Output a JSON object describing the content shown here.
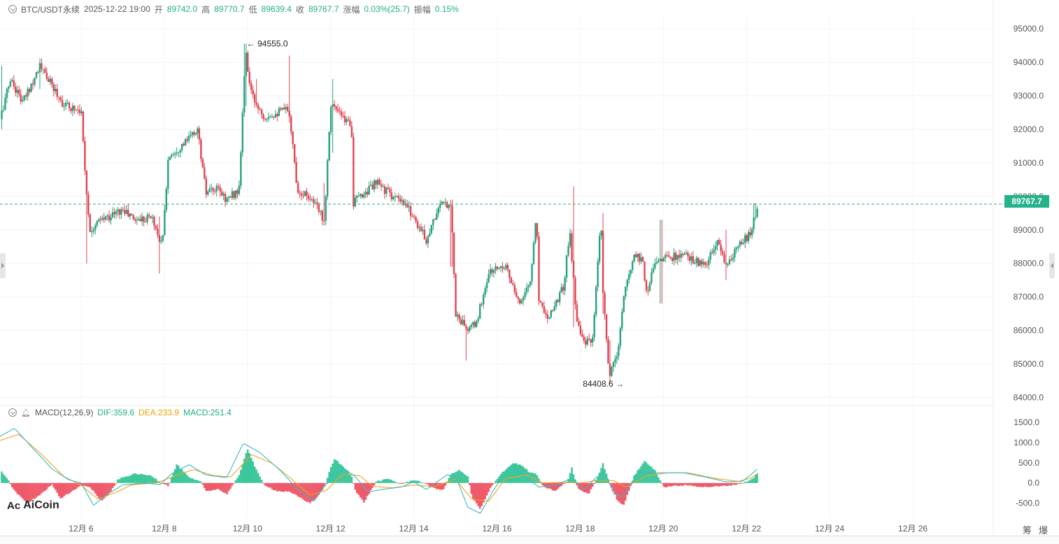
{
  "header": {
    "symbol": "BTC/USDT永续",
    "datetime": "2025-12-22 19:00",
    "open_label": "开",
    "open": "89742.0",
    "high_label": "高",
    "high": "89770.7",
    "low_label": "低",
    "low": "89639.4",
    "close_label": "收",
    "close": "89767.7",
    "change_label": "涨幅",
    "change": "0.03%(25.7)",
    "amplitude_label": "振幅",
    "amplitude": "0.15%"
  },
  "macd_header": {
    "name": "MACD(12,26,9)",
    "dif": "DIF:359.6",
    "dea": "DEA:233.9",
    "macd": "MACD:251.4"
  },
  "current_price": "89767.7",
  "logo": "AiCoin",
  "toolbar": {
    "items": [
      "筹",
      "爆"
    ]
  },
  "icons": [
    "collapse-chevron-icon",
    "bell-icon",
    "aicoin-logo-icon"
  ],
  "colors": {
    "up": "#26a17b",
    "down": "#e04352",
    "dif": "#3cb8c8",
    "dea": "#f0a519",
    "price_line": "#2aa889"
  },
  "chart_data": [
    {
      "type": "candlestick",
      "title": "BTC/USDT永续",
      "interval_note": "hourly candles",
      "x_tick_labels": [
        "12月 6",
        "12月 8",
        "12月 10",
        "12月 12",
        "12月 14",
        "12月 16",
        "12月 18",
        "12月 20",
        "12月 22",
        "12月 24",
        "12月 26"
      ],
      "x_ticks_day": [
        6,
        8,
        10,
        12,
        14,
        16,
        18,
        20,
        22,
        24,
        26
      ],
      "xlim_day": [
        4.05,
        27.9
      ],
      "ylim": [
        83800,
        95400
      ],
      "y_tick_labels": [
        "95000.0",
        "94000.0",
        "93000.0",
        "92000.0",
        "91000.0",
        "90000.0",
        "89000.0",
        "88000.0",
        "87000.0",
        "86000.0",
        "85000.0",
        "84000.0"
      ],
      "y_ticks": [
        95000,
        94000,
        93000,
        92000,
        91000,
        90000,
        89000,
        88000,
        87000,
        86000,
        85000,
        84000
      ],
      "last_price_line": 89767.7,
      "annotations": [
        {
          "text": "94555.0",
          "day": 9.95,
          "price": 94555.0,
          "side": "right"
        },
        {
          "text": "84408.6",
          "day": 19.12,
          "price": 84408.6,
          "side": "left"
        }
      ],
      "close_path": [
        [
          4.05,
          92300
        ],
        [
          4.3,
          93500
        ],
        [
          4.6,
          92800
        ],
        [
          5.0,
          93900
        ],
        [
          5.3,
          93300
        ],
        [
          5.6,
          92700
        ],
        [
          6.0,
          92600
        ],
        [
          6.1,
          90700
        ],
        [
          6.2,
          89000
        ],
        [
          6.5,
          89300
        ],
        [
          7.0,
          89600
        ],
        [
          7.3,
          89300
        ],
        [
          7.7,
          89400
        ],
        [
          7.95,
          88500
        ],
        [
          8.1,
          91200
        ],
        [
          8.5,
          91600
        ],
        [
          8.8,
          92000
        ],
        [
          9.0,
          90100
        ],
        [
          9.3,
          90200
        ],
        [
          9.5,
          89900
        ],
        [
          9.8,
          90200
        ],
        [
          9.95,
          94300
        ],
        [
          10.1,
          93000
        ],
        [
          10.4,
          92400
        ],
        [
          10.7,
          92500
        ],
        [
          11.0,
          92600
        ],
        [
          11.2,
          90200
        ],
        [
          11.5,
          90000
        ],
        [
          11.85,
          89300
        ],
        [
          12.0,
          92800
        ],
        [
          12.3,
          92300
        ],
        [
          12.5,
          92200
        ],
        [
          12.55,
          89800
        ],
        [
          12.8,
          90100
        ],
        [
          13.1,
          90400
        ],
        [
          13.5,
          90000
        ],
        [
          13.9,
          89600
        ],
        [
          14.3,
          88700
        ],
        [
          14.6,
          89700
        ],
        [
          14.9,
          89800
        ],
        [
          15.0,
          86500
        ],
        [
          15.3,
          86000
        ],
        [
          15.5,
          86200
        ],
        [
          15.8,
          87700
        ],
        [
          16.2,
          88000
        ],
        [
          16.5,
          86800
        ],
        [
          16.8,
          87400
        ],
        [
          16.95,
          89600
        ],
        [
          17.0,
          87000
        ],
        [
          17.2,
          86400
        ],
        [
          17.4,
          86800
        ],
        [
          17.6,
          87300
        ],
        [
          17.75,
          89000
        ],
        [
          17.9,
          86500
        ],
        [
          18.1,
          85600
        ],
        [
          18.3,
          85700
        ],
        [
          18.5,
          89300
        ],
        [
          18.55,
          87100
        ],
        [
          18.7,
          84600
        ],
        [
          18.9,
          85300
        ],
        [
          19.05,
          87000
        ],
        [
          19.3,
          88300
        ],
        [
          19.5,
          88100
        ],
        [
          19.6,
          87100
        ],
        [
          19.8,
          88100
        ],
        [
          20.2,
          88200
        ],
        [
          20.6,
          88200
        ],
        [
          21.0,
          87900
        ],
        [
          21.3,
          88600
        ],
        [
          21.55,
          87900
        ],
        [
          21.8,
          88500
        ],
        [
          22.1,
          88900
        ],
        [
          22.28,
          89767.7
        ]
      ],
      "wick_spikes": [
        [
          4.1,
          92000,
          93900
        ],
        [
          5.0,
          93200,
          94000
        ],
        [
          6.15,
          88000,
          90400
        ],
        [
          7.9,
          87700,
          89400
        ],
        [
          9.95,
          92700,
          94555.0
        ],
        [
          10.2,
          92700,
          93500
        ],
        [
          11.0,
          92200,
          94200
        ],
        [
          11.85,
          89200,
          90400
        ],
        [
          12.05,
          91300,
          93500
        ],
        [
          14.9,
          87900,
          89900
        ],
        [
          15.25,
          85100,
          86200
        ],
        [
          17.85,
          86100,
          90300
        ],
        [
          18.55,
          86500,
          89500
        ],
        [
          18.7,
          84408.6,
          85700
        ],
        [
          19.95,
          86800,
          89300
        ],
        [
          21.5,
          87500,
          89000
        ],
        [
          22.2,
          89300,
          89800
        ]
      ]
    },
    {
      "type": "macd",
      "title": "MACD(12,26,9)",
      "ylim": [
        -850,
        1600
      ],
      "y_tick_labels": [
        "1500.0",
        "1000.0",
        "500.0",
        "0.0",
        "-500.0"
      ],
      "y_ticks": [
        1500,
        1000,
        500,
        0,
        -500
      ],
      "last_values": {
        "dif": 359.6,
        "dea": 233.9,
        "macd": 251.4
      },
      "histogram_path": [
        [
          4.05,
          330
        ],
        [
          4.2,
          150
        ],
        [
          4.4,
          -200
        ],
        [
          4.7,
          -500
        ],
        [
          5.0,
          -300
        ],
        [
          5.3,
          -40
        ],
        [
          5.5,
          -380
        ],
        [
          5.8,
          -200
        ],
        [
          6.0,
          -60
        ],
        [
          6.2,
          -80
        ],
        [
          6.5,
          -450
        ],
        [
          6.7,
          -230
        ],
        [
          6.9,
          100
        ],
        [
          7.3,
          230
        ],
        [
          7.7,
          180
        ],
        [
          7.9,
          20
        ],
        [
          8.1,
          -70
        ],
        [
          8.3,
          460
        ],
        [
          8.6,
          130
        ],
        [
          8.9,
          20
        ],
        [
          9.0,
          -200
        ],
        [
          9.3,
          -150
        ],
        [
          9.5,
          -280
        ],
        [
          9.8,
          180
        ],
        [
          10.0,
          860
        ],
        [
          10.2,
          350
        ],
        [
          10.4,
          -40
        ],
        [
          10.7,
          -200
        ],
        [
          11.0,
          -220
        ],
        [
          11.2,
          -320
        ],
        [
          11.5,
          -500
        ],
        [
          11.7,
          -320
        ],
        [
          11.85,
          -90
        ],
        [
          12.0,
          360
        ],
        [
          12.1,
          600
        ],
        [
          12.3,
          400
        ],
        [
          12.5,
          200
        ],
        [
          12.6,
          -200
        ],
        [
          12.8,
          -480
        ],
        [
          12.95,
          -220
        ],
        [
          13.1,
          40
        ],
        [
          13.4,
          100
        ],
        [
          13.7,
          -30
        ],
        [
          14.0,
          80
        ],
        [
          14.2,
          20
        ],
        [
          14.4,
          -90
        ],
        [
          14.7,
          -190
        ],
        [
          14.9,
          230
        ],
        [
          15.1,
          320
        ],
        [
          15.3,
          150
        ],
        [
          15.4,
          -350
        ],
        [
          15.6,
          -650
        ],
        [
          15.85,
          -120
        ],
        [
          16.1,
          240
        ],
        [
          16.4,
          500
        ],
        [
          16.6,
          430
        ],
        [
          16.8,
          250
        ],
        [
          16.95,
          230
        ],
        [
          17.1,
          -80
        ],
        [
          17.4,
          -200
        ],
        [
          17.7,
          50
        ],
        [
          17.8,
          370
        ],
        [
          17.95,
          -140
        ],
        [
          18.2,
          -280
        ],
        [
          18.4,
          100
        ],
        [
          18.55,
          480
        ],
        [
          18.7,
          30
        ],
        [
          18.9,
          -440
        ],
        [
          19.05,
          -550
        ],
        [
          19.3,
          180
        ],
        [
          19.55,
          540
        ],
        [
          19.8,
          320
        ],
        [
          20.0,
          -100
        ],
        [
          20.3,
          -70
        ],
        [
          20.6,
          -60
        ],
        [
          21.0,
          -100
        ],
        [
          21.4,
          -80
        ],
        [
          21.7,
          -50
        ],
        [
          22.0,
          30
        ],
        [
          22.15,
          110
        ],
        [
          22.28,
          251.4
        ]
      ],
      "dif_path": [
        [
          4.05,
          1150
        ],
        [
          4.4,
          1350
        ],
        [
          4.8,
          900
        ],
        [
          5.3,
          350
        ],
        [
          5.7,
          80
        ],
        [
          6.0,
          0
        ],
        [
          6.3,
          -550
        ],
        [
          6.6,
          -300
        ],
        [
          7.0,
          -50
        ],
        [
          7.5,
          0
        ],
        [
          7.9,
          -40
        ],
        [
          8.2,
          250
        ],
        [
          8.6,
          450
        ],
        [
          9.0,
          200
        ],
        [
          9.5,
          130
        ],
        [
          9.9,
          980
        ],
        [
          10.3,
          750
        ],
        [
          10.8,
          300
        ],
        [
          11.2,
          -150
        ],
        [
          11.6,
          -450
        ],
        [
          11.85,
          -80
        ],
        [
          12.3,
          380
        ],
        [
          12.6,
          150
        ],
        [
          12.9,
          -220
        ],
        [
          13.3,
          -150
        ],
        [
          13.7,
          -100
        ],
        [
          14.0,
          30
        ],
        [
          14.3,
          -160
        ],
        [
          14.8,
          200
        ],
        [
          15.0,
          180
        ],
        [
          15.3,
          -600
        ],
        [
          15.6,
          -750
        ],
        [
          15.9,
          -200
        ],
        [
          16.3,
          380
        ],
        [
          16.6,
          230
        ],
        [
          17.0,
          -100
        ],
        [
          17.4,
          -60
        ],
        [
          17.8,
          120
        ],
        [
          18.1,
          -150
        ],
        [
          18.4,
          150
        ],
        [
          18.6,
          250
        ],
        [
          18.8,
          -250
        ],
        [
          19.0,
          -350
        ],
        [
          19.4,
          250
        ],
        [
          19.7,
          250
        ],
        [
          20.1,
          250
        ],
        [
          20.5,
          250
        ],
        [
          21.0,
          150
        ],
        [
          21.5,
          30
        ],
        [
          21.9,
          40
        ],
        [
          22.1,
          200
        ],
        [
          22.28,
          359.6
        ]
      ],
      "dea_path": [
        [
          4.05,
          1050
        ],
        [
          4.5,
          1200
        ],
        [
          5.0,
          750
        ],
        [
          5.6,
          150
        ],
        [
          6.0,
          -50
        ],
        [
          6.4,
          -400
        ],
        [
          6.8,
          -250
        ],
        [
          7.2,
          -50
        ],
        [
          7.8,
          0
        ],
        [
          8.2,
          150
        ],
        [
          8.7,
          330
        ],
        [
          9.2,
          180
        ],
        [
          9.6,
          150
        ],
        [
          10.1,
          700
        ],
        [
          10.6,
          480
        ],
        [
          11.0,
          150
        ],
        [
          11.5,
          -300
        ],
        [
          11.9,
          -180
        ],
        [
          12.3,
          220
        ],
        [
          12.7,
          180
        ],
        [
          13.0,
          -80
        ],
        [
          13.5,
          -120
        ],
        [
          14.0,
          -50
        ],
        [
          14.5,
          -90
        ],
        [
          15.0,
          100
        ],
        [
          15.4,
          -400
        ],
        [
          15.8,
          -450
        ],
        [
          16.2,
          100
        ],
        [
          16.7,
          200
        ],
        [
          17.1,
          0
        ],
        [
          17.6,
          20
        ],
        [
          18.0,
          0
        ],
        [
          18.4,
          60
        ],
        [
          18.8,
          60
        ],
        [
          19.1,
          -100
        ],
        [
          19.6,
          180
        ],
        [
          20.1,
          250
        ],
        [
          20.6,
          250
        ],
        [
          21.2,
          120
        ],
        [
          21.8,
          40
        ],
        [
          22.1,
          120
        ],
        [
          22.28,
          233.9
        ]
      ]
    }
  ]
}
